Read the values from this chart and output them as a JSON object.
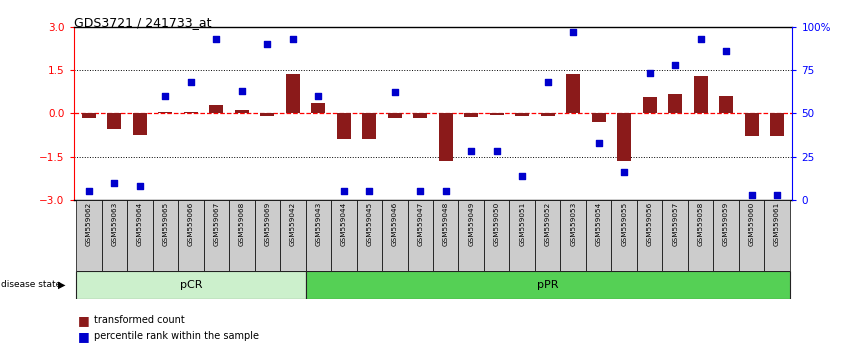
{
  "title": "GDS3721 / 241733_at",
  "categories": [
    "GSM559062",
    "GSM559063",
    "GSM559064",
    "GSM559065",
    "GSM559066",
    "GSM559067",
    "GSM559068",
    "GSM559069",
    "GSM559042",
    "GSM559043",
    "GSM559044",
    "GSM559045",
    "GSM559046",
    "GSM559047",
    "GSM559048",
    "GSM559049",
    "GSM559050",
    "GSM559051",
    "GSM559052",
    "GSM559053",
    "GSM559054",
    "GSM559055",
    "GSM559056",
    "GSM559057",
    "GSM559058",
    "GSM559059",
    "GSM559060",
    "GSM559061"
  ],
  "transformed_count": [
    -0.15,
    -0.55,
    -0.75,
    0.05,
    0.05,
    0.28,
    0.12,
    -0.08,
    1.35,
    0.35,
    -0.9,
    -0.9,
    -0.18,
    -0.15,
    -1.65,
    -0.12,
    -0.05,
    -0.08,
    -0.08,
    1.35,
    -0.3,
    -1.65,
    0.55,
    0.65,
    1.3,
    0.6,
    -0.8,
    -0.8
  ],
  "percentile_rank": [
    5,
    10,
    8,
    60,
    68,
    93,
    63,
    90,
    93,
    60,
    5,
    5,
    62,
    5,
    5,
    28,
    28,
    14,
    68,
    97,
    33,
    16,
    73,
    78,
    93,
    86,
    3,
    3
  ],
  "pCR_count": 9,
  "pcr_color": "#ccf0cc",
  "ppr_color": "#55d055",
  "bar_color": "#8b1a1a",
  "dot_color": "#0000cc",
  "ylim": [
    -3,
    3
  ],
  "yticks_left": [
    -3,
    -1.5,
    0,
    1.5,
    3
  ],
  "yticks_right": [
    0,
    25,
    50,
    75,
    100
  ],
  "legend_bar_label": "transformed count",
  "legend_dot_label": "percentile rank within the sample",
  "disease_state_label": "disease state"
}
